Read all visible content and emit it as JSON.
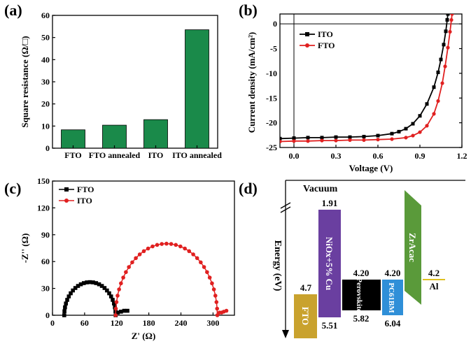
{
  "panels": {
    "a": "(a)",
    "b": "(b)",
    "c": "(c)",
    "d": "(d)"
  },
  "chart_data": [
    {
      "panel": "(a)",
      "type": "bar",
      "categories": [
        "FTO",
        "FTO annealed",
        "ITO",
        "ITO annealed"
      ],
      "values": [
        8.3,
        10.4,
        12.9,
        53.5
      ],
      "ylabel": "Square resistance (Ω/□)",
      "xlabel": "",
      "ylim": [
        0,
        60
      ],
      "yticks": [
        0,
        10,
        20,
        30,
        40,
        50,
        60
      ],
      "color": "#1a8a4a"
    },
    {
      "panel": "(b)",
      "type": "line",
      "xlabel": "Voltage (V)",
      "ylabel": "Current density (mA/cm²)",
      "xlim": [
        -0.1,
        1.2
      ],
      "ylim": [
        -25,
        2
      ],
      "xticks": [
        0.0,
        0.3,
        0.6,
        0.9,
        1.2
      ],
      "yticks": [
        0,
        -5,
        -10,
        -15,
        -20,
        -25
      ],
      "legend_position": "top-left",
      "series": [
        {
          "name": "ITO",
          "color": "#000000",
          "marker": "square",
          "points": [
            [
              -0.1,
              -23.2
            ],
            [
              0.0,
              -23.1
            ],
            [
              0.1,
              -23.0
            ],
            [
              0.2,
              -23.0
            ],
            [
              0.3,
              -22.9
            ],
            [
              0.4,
              -22.9
            ],
            [
              0.5,
              -22.8
            ],
            [
              0.6,
              -22.6
            ],
            [
              0.7,
              -22.2
            ],
            [
              0.75,
              -21.8
            ],
            [
              0.8,
              -21.2
            ],
            [
              0.85,
              -20.2
            ],
            [
              0.9,
              -18.6
            ],
            [
              0.95,
              -16.2
            ],
            [
              1.0,
              -12.8
            ],
            [
              1.03,
              -9.8
            ],
            [
              1.05,
              -7.2
            ],
            [
              1.07,
              -4.2
            ],
            [
              1.085,
              -1.5
            ],
            [
              1.095,
              0.8
            ],
            [
              1.1,
              2.0
            ]
          ]
        },
        {
          "name": "FTO",
          "color": "#e02020",
          "marker": "circle",
          "points": [
            [
              -0.1,
              -23.8
            ],
            [
              0.0,
              -23.7
            ],
            [
              0.1,
              -23.7
            ],
            [
              0.2,
              -23.6
            ],
            [
              0.3,
              -23.6
            ],
            [
              0.4,
              -23.5
            ],
            [
              0.5,
              -23.5
            ],
            [
              0.6,
              -23.4
            ],
            [
              0.7,
              -23.3
            ],
            [
              0.8,
              -23.0
            ],
            [
              0.85,
              -22.6
            ],
            [
              0.9,
              -21.9
            ],
            [
              0.95,
              -20.6
            ],
            [
              1.0,
              -18.2
            ],
            [
              1.03,
              -15.6
            ],
            [
              1.06,
              -12.0
            ],
            [
              1.08,
              -8.6
            ],
            [
              1.1,
              -4.8
            ],
            [
              1.115,
              -1.6
            ],
            [
              1.125,
              0.8
            ],
            [
              1.13,
              2.0
            ]
          ]
        }
      ]
    },
    {
      "panel": "(c)",
      "type": "scatter",
      "xlabel": "Z' (Ω)",
      "ylabel": "-Z'' (Ω)",
      "xlim": [
        0,
        340
      ],
      "ylim": [
        0,
        150
      ],
      "xticks": [
        0,
        60,
        120,
        180,
        240,
        300
      ],
      "yticks": [
        0,
        30,
        60,
        90,
        120,
        150
      ],
      "legend_position": "top-left",
      "series": [
        {
          "name": "FTO",
          "color": "#000000",
          "marker": "square",
          "arc": {
            "x0": 22,
            "x1": 118,
            "peak": 37,
            "n": 26
          },
          "tail": [
            [
              122,
              3
            ],
            [
              128,
              4
            ],
            [
              134,
              5
            ],
            [
              140,
              5
            ]
          ]
        },
        {
          "name": "ITO",
          "color": "#e02020",
          "marker": "circle",
          "arc": {
            "x0": 118,
            "x1": 308,
            "peak": 80,
            "n": 34
          },
          "tail": [
            [
              312,
              3
            ],
            [
              316,
              3
            ],
            [
              320,
              4
            ],
            [
              325,
              5
            ]
          ]
        }
      ]
    }
  ],
  "energy_diagram": {
    "vacuum_label": "Vacuum",
    "ylabel": "Energy (eV)",
    "bars": [
      {
        "label": "FTO",
        "top": "4.7",
        "bottom": "",
        "color": "#c9a22e"
      },
      {
        "label": "NiOx+5% Cu",
        "top": "1.91",
        "bottom": "5.51",
        "color": "#6a3fa0"
      },
      {
        "label": "Perovskite",
        "top": "4.20",
        "bottom": "5.82",
        "color": "#000000"
      },
      {
        "label": "PC61BM",
        "top": "4.20",
        "bottom": "6.04",
        "color": "#2f8fd8"
      },
      {
        "label": "ZrAcac",
        "top": "",
        "bottom": "",
        "color": "#5a9a3a"
      },
      {
        "label": "Al",
        "top": "4.2",
        "bottom": "",
        "color": "#e0c020"
      }
    ]
  }
}
